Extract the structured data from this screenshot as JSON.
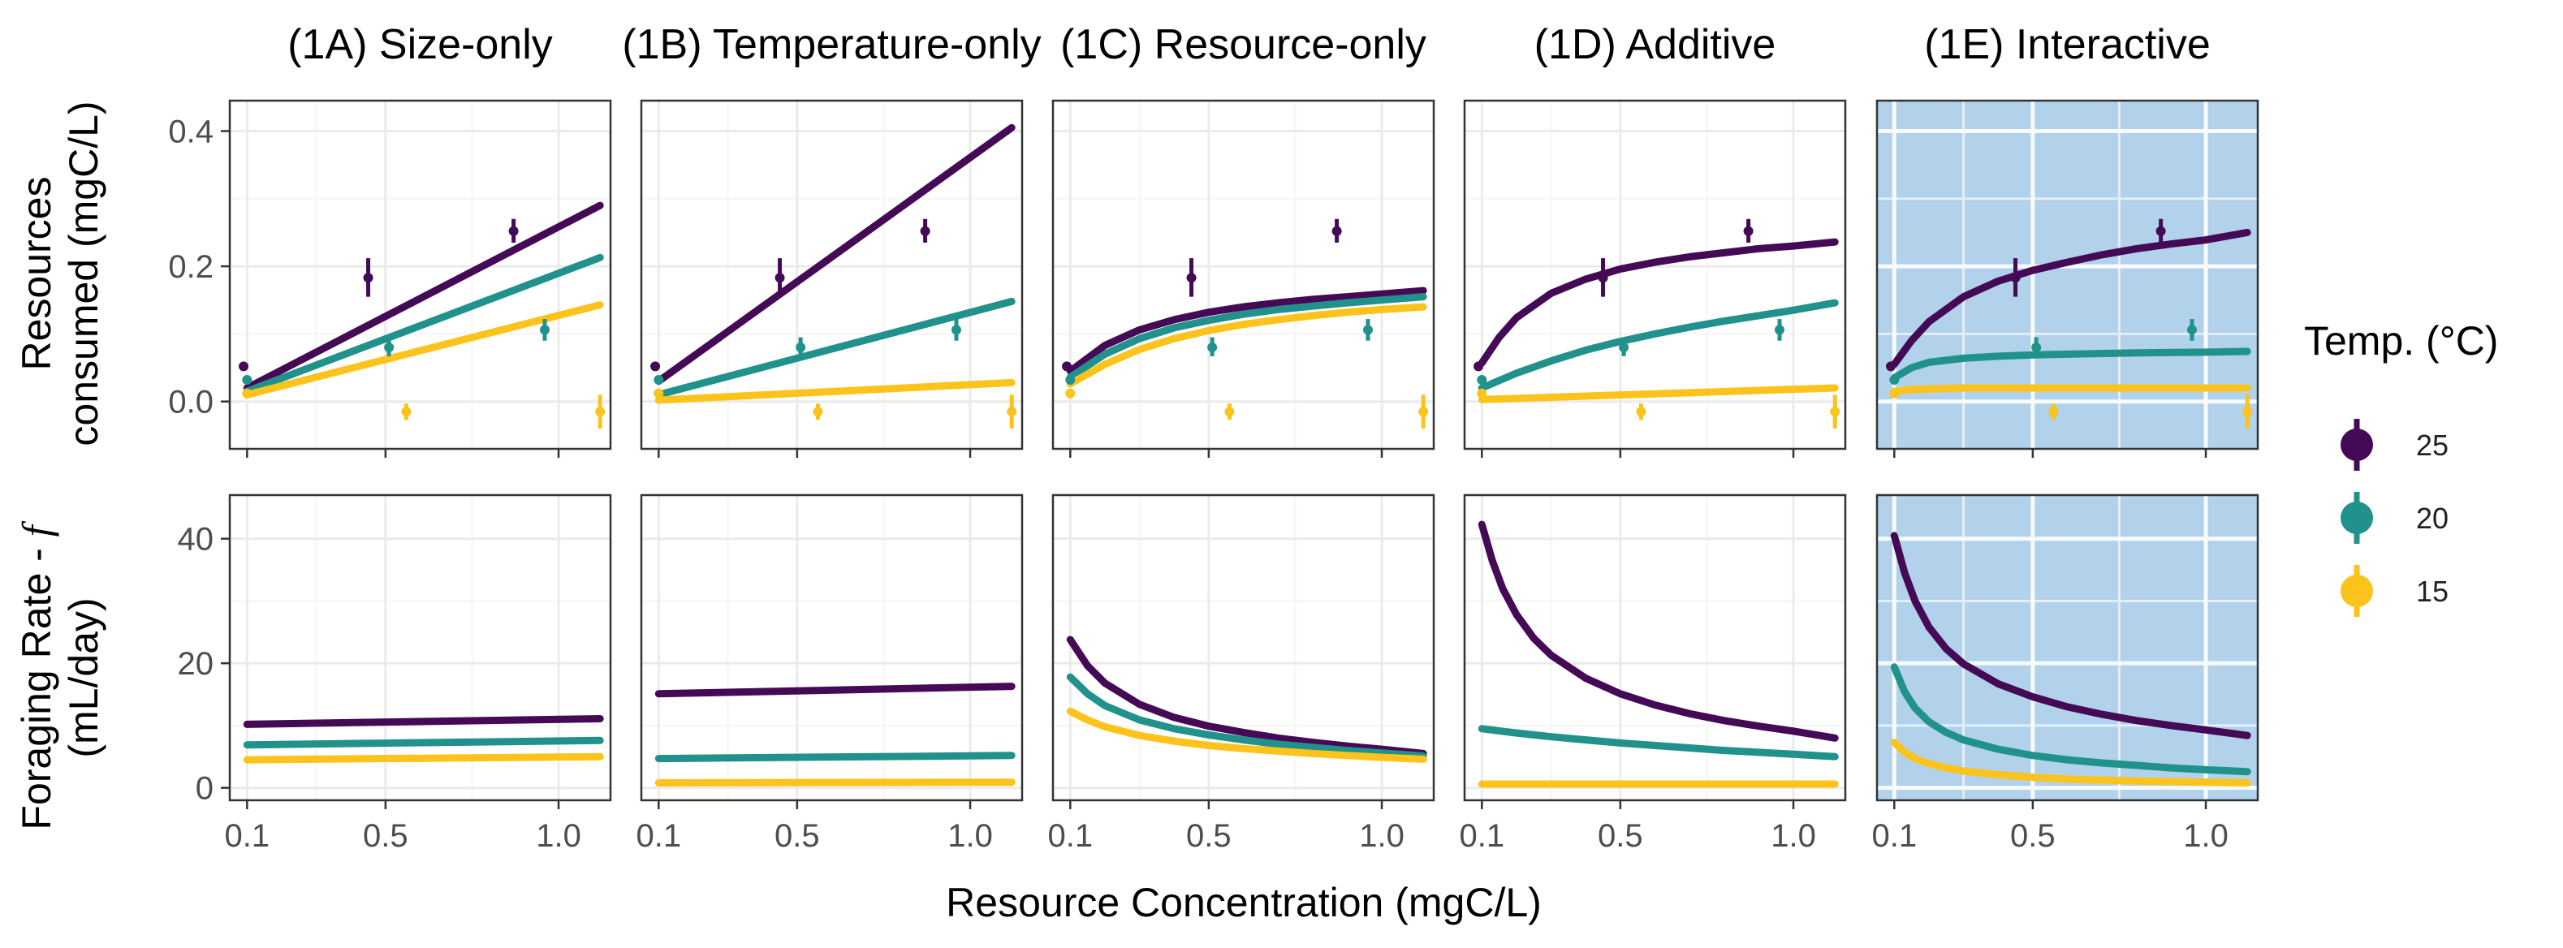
{
  "chart_data": {
    "type": "line",
    "panel_titles": [
      "(1A) Size-only",
      "(1B) Temperature-only",
      "(1C) Resource-only",
      "(1D) Additive",
      "(1E) Interactive"
    ],
    "highlighted_panel": "(1E) Interactive",
    "highlight_color": "#b1d2ea",
    "xlabel": "Resource Concentration (mgC/L)",
    "x_ticks": [
      "0.1",
      "0.5",
      "1.0"
    ],
    "xlim": [
      0.05,
      1.15
    ],
    "series_colors": {
      "25": "#450a56",
      "20": "#21918c",
      "15": "#fbc31b"
    },
    "legend": {
      "title": "Temp. (°C)",
      "entries": [
        "25",
        "20",
        "15"
      ],
      "position": "right"
    },
    "rows": [
      {
        "ylabel": [
          "Resources",
          "consumed (mgC/L)"
        ],
        "y_ticks": [
          "0.0",
          "0.2",
          "0.4"
        ],
        "ylim": [
          -0.07,
          0.445
        ],
        "observed": [
          {
            "temp": "25",
            "points": [
              {
                "x": 0.09,
                "y": 0.052,
                "lo": 0.052,
                "hi": 0.052
              },
              {
                "x": 0.45,
                "y": 0.183,
                "lo": 0.155,
                "hi": 0.212
              },
              {
                "x": 0.87,
                "y": 0.252,
                "lo": 0.235,
                "hi": 0.27
              }
            ]
          },
          {
            "temp": "20",
            "points": [
              {
                "x": 0.1,
                "y": 0.032,
                "lo": 0.032,
                "hi": 0.032
              },
              {
                "x": 0.51,
                "y": 0.08,
                "lo": 0.067,
                "hi": 0.095
              },
              {
                "x": 0.96,
                "y": 0.106,
                "lo": 0.09,
                "hi": 0.122
              }
            ]
          },
          {
            "temp": "15",
            "points": [
              {
                "x": 0.1,
                "y": 0.012,
                "lo": 0.012,
                "hi": 0.012
              },
              {
                "x": 0.56,
                "y": -0.015,
                "lo": -0.027,
                "hi": -0.003
              },
              {
                "x": 1.12,
                "y": -0.015,
                "lo": -0.04,
                "hi": 0.01
              }
            ]
          }
        ],
        "panels": [
          {
            "series": [
              {
                "temp": "25",
                "x": [
                  0.1,
                  1.12
                ],
                "y": [
                  0.02,
                  0.29
                ]
              },
              {
                "temp": "20",
                "x": [
                  0.1,
                  1.12
                ],
                "y": [
                  0.015,
                  0.213
                ]
              },
              {
                "temp": "15",
                "x": [
                  0.1,
                  1.12
                ],
                "y": [
                  0.01,
                  0.143
                ]
              }
            ]
          },
          {
            "series": [
              {
                "temp": "25",
                "x": [
                  0.1,
                  1.12
                ],
                "y": [
                  0.03,
                  0.405
                ]
              },
              {
                "temp": "20",
                "x": [
                  0.1,
                  1.12
                ],
                "y": [
                  0.01,
                  0.148
                ]
              },
              {
                "temp": "15",
                "x": [
                  0.1,
                  1.12
                ],
                "y": [
                  0.002,
                  0.028
                ]
              }
            ]
          },
          {
            "series": [
              {
                "temp": "25",
                "x": [
                  0.1,
                  0.2,
                  0.3,
                  0.4,
                  0.5,
                  0.6,
                  0.7,
                  0.8,
                  0.9,
                  1.0,
                  1.12
                ],
                "y": [
                  0.045,
                  0.083,
                  0.106,
                  0.121,
                  0.132,
                  0.14,
                  0.146,
                  0.151,
                  0.155,
                  0.159,
                  0.164
                ]
              },
              {
                "temp": "20",
                "x": [
                  0.1,
                  0.2,
                  0.3,
                  0.4,
                  0.5,
                  0.6,
                  0.7,
                  0.8,
                  0.9,
                  1.0,
                  1.12
                ],
                "y": [
                  0.036,
                  0.07,
                  0.093,
                  0.109,
                  0.12,
                  0.129,
                  0.136,
                  0.141,
                  0.146,
                  0.15,
                  0.155
                ]
              },
              {
                "temp": "15",
                "x": [
                  0.1,
                  0.2,
                  0.3,
                  0.4,
                  0.5,
                  0.6,
                  0.7,
                  0.8,
                  0.9,
                  1.0,
                  1.12
                ],
                "y": [
                  0.026,
                  0.055,
                  0.077,
                  0.093,
                  0.105,
                  0.114,
                  0.121,
                  0.127,
                  0.132,
                  0.136,
                  0.14
                ]
              }
            ]
          },
          {
            "series": [
              {
                "temp": "25",
                "x": [
                  0.1,
                  0.15,
                  0.2,
                  0.3,
                  0.4,
                  0.5,
                  0.6,
                  0.7,
                  0.8,
                  0.9,
                  1.0,
                  1.12
                ],
                "y": [
                  0.057,
                  0.095,
                  0.124,
                  0.16,
                  0.181,
                  0.196,
                  0.206,
                  0.214,
                  0.22,
                  0.226,
                  0.23,
                  0.236
                ]
              },
              {
                "temp": "20",
                "x": [
                  0.1,
                  0.2,
                  0.3,
                  0.4,
                  0.5,
                  0.6,
                  0.7,
                  0.8,
                  0.9,
                  1.0,
                  1.12
                ],
                "y": [
                  0.02,
                  0.042,
                  0.06,
                  0.076,
                  0.089,
                  0.1,
                  0.11,
                  0.119,
                  0.127,
                  0.135,
                  0.146
                ]
              },
              {
                "temp": "15",
                "x": [
                  0.1,
                  1.12
                ],
                "y": [
                  0.003,
                  0.02
                ]
              }
            ]
          },
          {
            "series": [
              {
                "temp": "25",
                "x": [
                  0.1,
                  0.15,
                  0.2,
                  0.3,
                  0.4,
                  0.5,
                  0.6,
                  0.7,
                  0.8,
                  0.9,
                  1.0,
                  1.12
                ],
                "y": [
                  0.055,
                  0.09,
                  0.118,
                  0.155,
                  0.178,
                  0.194,
                  0.206,
                  0.217,
                  0.226,
                  0.233,
                  0.239,
                  0.25
                ]
              },
              {
                "temp": "20",
                "x": [
                  0.1,
                  0.15,
                  0.2,
                  0.3,
                  0.4,
                  0.5,
                  0.6,
                  0.8,
                  1.0,
                  1.12
                ],
                "y": [
                  0.035,
                  0.05,
                  0.058,
                  0.064,
                  0.067,
                  0.069,
                  0.07,
                  0.072,
                  0.073,
                  0.074
                ]
              },
              {
                "temp": "15",
                "x": [
                  0.1,
                  0.15,
                  0.3,
                  0.6,
                  1.0,
                  1.12
                ],
                "y": [
                  0.015,
                  0.018,
                  0.02,
                  0.02,
                  0.02,
                  0.02
                ]
              }
            ]
          }
        ]
      },
      {
        "ylabel": [
          "Foraging Rate - f",
          "(mL/day)"
        ],
        "y_ticks": [
          "0",
          "20",
          "40"
        ],
        "ylim": [
          -2,
          47
        ],
        "panels": [
          {
            "series": [
              {
                "temp": "25",
                "x": [
                  0.1,
                  1.12
                ],
                "y": [
                  10.2,
                  11.1
                ]
              },
              {
                "temp": "20",
                "x": [
                  0.1,
                  1.12
                ],
                "y": [
                  6.9,
                  7.6
                ]
              },
              {
                "temp": "15",
                "x": [
                  0.1,
                  1.12
                ],
                "y": [
                  4.5,
                  5.0
                ]
              }
            ]
          },
          {
            "series": [
              {
                "temp": "25",
                "x": [
                  0.1,
                  1.12
                ],
                "y": [
                  15.1,
                  16.3
                ]
              },
              {
                "temp": "20",
                "x": [
                  0.1,
                  1.12
                ],
                "y": [
                  4.7,
                  5.2
                ]
              },
              {
                "temp": "15",
                "x": [
                  0.1,
                  1.12
                ],
                "y": [
                  0.8,
                  0.9
                ]
              }
            ]
          },
          {
            "series": [
              {
                "temp": "25",
                "x": [
                  0.1,
                  0.15,
                  0.2,
                  0.3,
                  0.4,
                  0.5,
                  0.6,
                  0.7,
                  0.8,
                  0.9,
                  1.0,
                  1.12
                ],
                "y": [
                  23.8,
                  19.6,
                  16.8,
                  13.4,
                  11.3,
                  9.9,
                  8.9,
                  8.0,
                  7.3,
                  6.7,
                  6.2,
                  5.5
                ]
              },
              {
                "temp": "20",
                "x": [
                  0.1,
                  0.15,
                  0.2,
                  0.3,
                  0.4,
                  0.5,
                  0.6,
                  0.7,
                  0.8,
                  0.9,
                  1.0,
                  1.12
                ],
                "y": [
                  17.8,
                  15.1,
                  13.2,
                  10.9,
                  9.5,
                  8.5,
                  7.7,
                  7.0,
                  6.5,
                  6.0,
                  5.6,
                  5.1
                ]
              },
              {
                "temp": "15",
                "x": [
                  0.1,
                  0.15,
                  0.2,
                  0.3,
                  0.4,
                  0.5,
                  0.6,
                  0.7,
                  0.8,
                  0.9,
                  1.0,
                  1.12
                ],
                "y": [
                  12.3,
                  10.9,
                  9.8,
                  8.4,
                  7.5,
                  6.8,
                  6.3,
                  5.9,
                  5.5,
                  5.2,
                  4.9,
                  4.6
                ]
              }
            ]
          },
          {
            "series": [
              {
                "temp": "25",
                "x": [
                  0.1,
                  0.13,
                  0.16,
                  0.2,
                  0.25,
                  0.3,
                  0.4,
                  0.5,
                  0.6,
                  0.7,
                  0.8,
                  0.9,
                  1.0,
                  1.12
                ],
                "y": [
                  42.3,
                  36.5,
                  32.0,
                  27.8,
                  24.0,
                  21.3,
                  17.6,
                  15.1,
                  13.3,
                  11.9,
                  10.8,
                  9.9,
                  9.1,
                  8.0
                ]
              },
              {
                "temp": "20",
                "x": [
                  0.1,
                  0.2,
                  0.3,
                  0.4,
                  0.5,
                  0.6,
                  0.7,
                  0.8,
                  0.9,
                  1.0,
                  1.12
                ],
                "y": [
                  9.5,
                  8.8,
                  8.2,
                  7.7,
                  7.2,
                  6.8,
                  6.4,
                  6.0,
                  5.7,
                  5.4,
                  5.0
                ]
              },
              {
                "temp": "15",
                "x": [
                  0.1,
                  1.12
                ],
                "y": [
                  0.6,
                  0.6
                ]
              }
            ]
          },
          {
            "series": [
              {
                "temp": "25",
                "x": [
                  0.1,
                  0.13,
                  0.16,
                  0.2,
                  0.25,
                  0.3,
                  0.4,
                  0.5,
                  0.6,
                  0.7,
                  0.8,
                  0.9,
                  1.0,
                  1.12
                ],
                "y": [
                  40.5,
                  34.5,
                  30.0,
                  25.8,
                  22.3,
                  19.9,
                  16.7,
                  14.6,
                  13.0,
                  11.8,
                  10.8,
                  10.0,
                  9.3,
                  8.4
                ]
              },
              {
                "temp": "20",
                "x": [
                  0.1,
                  0.13,
                  0.16,
                  0.2,
                  0.25,
                  0.3,
                  0.4,
                  0.5,
                  0.6,
                  0.7,
                  0.8,
                  0.9,
                  1.0,
                  1.12
                ],
                "y": [
                  19.4,
                  15.4,
                  12.8,
                  10.6,
                  8.9,
                  7.7,
                  6.2,
                  5.2,
                  4.5,
                  4.0,
                  3.6,
                  3.2,
                  2.9,
                  2.6
                ]
              },
              {
                "temp": "15",
                "x": [
                  0.1,
                  0.13,
                  0.16,
                  0.2,
                  0.25,
                  0.3,
                  0.4,
                  0.5,
                  0.6,
                  0.8,
                  1.0,
                  1.12
                ],
                "y": [
                  7.3,
                  5.7,
                  4.7,
                  3.9,
                  3.2,
                  2.7,
                  2.1,
                  1.7,
                  1.4,
                  1.1,
                  0.9,
                  0.8
                ]
              }
            ]
          }
        ]
      }
    ]
  }
}
